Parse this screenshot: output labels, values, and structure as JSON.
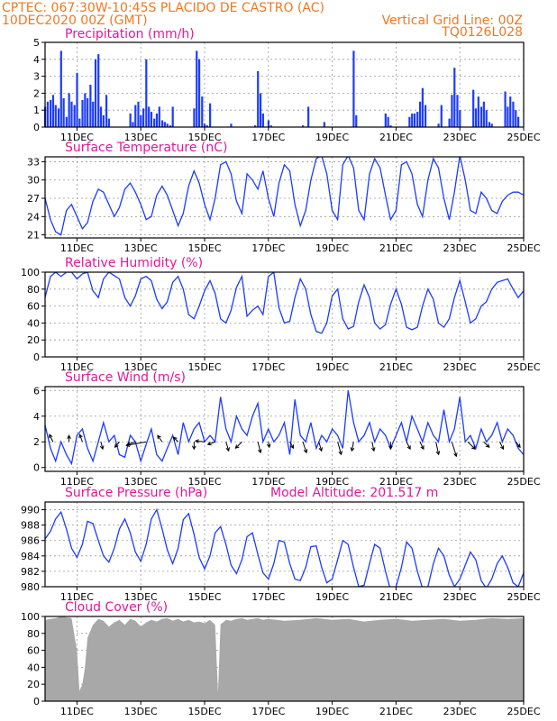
{
  "header": {
    "line1_left": "CPTEC:  067:30W-10:45S  PLACIDO DE CASTRO (AC)",
    "line2_left": "10DEC2020 00Z (GMT)",
    "line2_right": "Vertical Grid Line: 00Z",
    "line3_right": "TQ0126L028"
  },
  "colors": {
    "series": "#1c3cff",
    "cloud": "#a8a8a8",
    "title": "#e0189c",
    "header": "#f07820",
    "grid": "#9a9a9a"
  },
  "chart_data": [
    {
      "id": "precip",
      "type": "bar",
      "title": "Precipitation (mm/h)",
      "x": [
        10.0,
        10.08,
        10.17,
        10.25,
        10.33,
        10.42,
        10.5,
        10.58,
        10.67,
        10.75,
        10.83,
        10.92,
        11.0,
        11.08,
        11.17,
        11.25,
        11.33,
        11.42,
        11.5,
        11.58,
        11.67,
        11.75,
        11.83,
        11.92,
        12.0,
        12.67,
        12.75,
        12.83,
        12.92,
        13.0,
        13.08,
        13.17,
        13.25,
        13.33,
        13.42,
        13.5,
        13.58,
        13.67,
        13.75,
        13.83,
        13.92,
        14.0,
        14.67,
        14.75,
        14.83,
        14.92,
        15.0,
        15.08,
        15.17,
        15.83,
        16.58,
        16.67,
        16.75,
        16.83,
        17.0,
        17.08,
        18.08,
        18.25,
        18.75,
        19.67,
        19.75,
        20.67,
        20.75,
        20.83,
        21.42,
        21.5,
        21.58,
        21.67,
        21.75,
        21.83,
        21.92,
        22.33,
        22.42,
        22.67,
        22.75,
        22.83,
        22.92,
        23.0,
        23.42,
        23.5,
        23.58,
        23.67,
        23.75,
        23.83,
        23.92,
        24.0,
        24.42,
        24.5,
        24.58,
        24.67,
        24.75,
        24.83
      ],
      "values": [
        1.2,
        1.5,
        1.6,
        1.9,
        1.3,
        1.1,
        4.5,
        1.7,
        0.6,
        2.0,
        1.5,
        1.3,
        3.2,
        0.5,
        1.6,
        2.0,
        1.7,
        2.5,
        1.5,
        4.0,
        4.3,
        1.2,
        0.7,
        1.9,
        0.5,
        0.8,
        0.3,
        1.3,
        1.5,
        0.7,
        1.1,
        4.0,
        1.2,
        0.9,
        0.5,
        0.8,
        1.2,
        0.4,
        0.3,
        0.2,
        0.1,
        1.2,
        1.1,
        4.5,
        4.0,
        1.8,
        0.2,
        0.1,
        1.4,
        0.2,
        0.1,
        3.3,
        2.0,
        0.8,
        0.4,
        0.1,
        0.1,
        1.2,
        0.3,
        4.5,
        0.7,
        0.8,
        0.6,
        0.1,
        0.6,
        0.8,
        0.8,
        0.9,
        1.5,
        2.3,
        1.3,
        0.2,
        1.3,
        0.5,
        1.9,
        3.5,
        1.9,
        1.0,
        2.2,
        1.1,
        1.8,
        1.2,
        1.5,
        1.0,
        0.3,
        0.2,
        2.1,
        1.2,
        1.8,
        1.5,
        1.0,
        0.6
      ],
      "ylim": [
        0,
        5
      ],
      "yticks": [
        0,
        1,
        2,
        3,
        4,
        5
      ],
      "xlim": [
        10,
        25
      ],
      "grid": true
    },
    {
      "id": "temp",
      "type": "line",
      "title": "Surface Temperature (nC)",
      "x": [
        10.0,
        10.17,
        10.33,
        10.5,
        10.67,
        10.83,
        11.0,
        11.17,
        11.33,
        11.5,
        11.67,
        11.83,
        12.0,
        12.17,
        12.33,
        12.5,
        12.67,
        12.83,
        13.0,
        13.17,
        13.33,
        13.5,
        13.67,
        13.83,
        14.0,
        14.17,
        14.33,
        14.5,
        14.67,
        14.83,
        15.0,
        15.17,
        15.33,
        15.5,
        15.67,
        15.83,
        16.0,
        16.17,
        16.33,
        16.5,
        16.67,
        16.83,
        17.0,
        17.17,
        17.33,
        17.5,
        17.67,
        17.83,
        18.0,
        18.17,
        18.33,
        18.5,
        18.67,
        18.83,
        19.0,
        19.17,
        19.33,
        19.5,
        19.67,
        19.83,
        20.0,
        20.17,
        20.33,
        20.5,
        20.67,
        20.83,
        21.0,
        21.17,
        21.33,
        21.5,
        21.67,
        21.83,
        22.0,
        22.17,
        22.33,
        22.5,
        22.67,
        22.83,
        23.0,
        23.17,
        23.33,
        23.5,
        23.67,
        23.83,
        24.0,
        24.17,
        24.33,
        24.5,
        24.67,
        24.83,
        25.0
      ],
      "values": [
        27.0,
        23.5,
        21.5,
        21.0,
        25.0,
        26.0,
        24.0,
        22.0,
        23.0,
        26.5,
        28.5,
        28.0,
        26.0,
        24.0,
        25.5,
        28.5,
        29.5,
        28.0,
        26.0,
        23.5,
        24.0,
        27.5,
        29.0,
        27.5,
        25.0,
        22.5,
        24.5,
        29.0,
        31.5,
        29.5,
        26.0,
        23.5,
        27.0,
        32.5,
        33.0,
        31.0,
        26.5,
        24.5,
        31.0,
        30.0,
        28.5,
        31.5,
        27.0,
        24.0,
        29.5,
        32.5,
        31.5,
        26.0,
        22.5,
        25.0,
        30.0,
        33.5,
        34.0,
        31.0,
        25.0,
        23.5,
        32.5,
        34.0,
        32.0,
        25.0,
        23.5,
        31.0,
        33.5,
        32.0,
        27.5,
        23.5,
        25.0,
        32.5,
        33.0,
        31.0,
        26.0,
        24.0,
        30.0,
        33.5,
        32.0,
        27.0,
        23.5,
        28.0,
        34.0,
        30.0,
        25.0,
        24.5,
        28.0,
        27.0,
        25.0,
        24.5,
        26.5,
        27.5,
        28.0,
        28.0,
        27.5
      ],
      "ylim": [
        20.5,
        33.8
      ],
      "yticks": [
        21,
        24,
        27,
        30,
        33
      ],
      "xlim": [
        10,
        25
      ],
      "grid": true
    },
    {
      "id": "rh",
      "type": "line",
      "title": "Relative Humidity (%)",
      "x": [
        10.0,
        10.17,
        10.33,
        10.5,
        10.67,
        10.83,
        11.0,
        11.17,
        11.33,
        11.5,
        11.67,
        11.83,
        12.0,
        12.17,
        12.33,
        12.5,
        12.67,
        12.83,
        13.0,
        13.17,
        13.33,
        13.5,
        13.67,
        13.83,
        14.0,
        14.17,
        14.33,
        14.5,
        14.67,
        14.83,
        15.0,
        15.17,
        15.33,
        15.5,
        15.67,
        15.83,
        16.0,
        16.17,
        16.33,
        16.5,
        16.67,
        16.83,
        17.0,
        17.17,
        17.33,
        17.5,
        17.67,
        17.83,
        18.0,
        18.17,
        18.33,
        18.5,
        18.67,
        18.83,
        19.0,
        19.17,
        19.33,
        19.5,
        19.67,
        19.83,
        20.0,
        20.17,
        20.33,
        20.5,
        20.67,
        20.83,
        21.0,
        21.17,
        21.33,
        21.5,
        21.67,
        21.83,
        22.0,
        22.17,
        22.33,
        22.5,
        22.67,
        22.83,
        23.0,
        23.17,
        23.33,
        23.5,
        23.67,
        23.83,
        24.0,
        24.17,
        24.33,
        24.5,
        24.67,
        24.83,
        25.0
      ],
      "values": [
        70,
        95,
        100,
        95,
        100,
        100,
        92,
        98,
        100,
        78,
        70,
        92,
        100,
        96,
        92,
        70,
        60,
        72,
        92,
        95,
        90,
        68,
        57,
        65,
        88,
        95,
        80,
        50,
        45,
        60,
        78,
        90,
        75,
        45,
        40,
        55,
        82,
        95,
        48,
        55,
        60,
        50,
        95,
        100,
        58,
        40,
        42,
        70,
        92,
        80,
        50,
        30,
        28,
        40,
        72,
        80,
        45,
        33,
        36,
        65,
        85,
        70,
        40,
        33,
        38,
        62,
        80,
        62,
        35,
        32,
        35,
        60,
        80,
        68,
        40,
        35,
        45,
        70,
        90,
        65,
        40,
        45,
        60,
        65,
        80,
        88,
        90,
        92,
        80,
        70,
        78
      ],
      "ylim": [
        0,
        100
      ],
      "yticks": [
        0,
        20,
        40,
        60,
        80,
        100
      ],
      "xlim": [
        10,
        25
      ],
      "grid": true
    },
    {
      "id": "wind",
      "type": "line",
      "title": "Surface Wind (m/s)",
      "x": [
        10.0,
        10.17,
        10.33,
        10.5,
        10.67,
        10.83,
        11.0,
        11.17,
        11.33,
        11.5,
        11.67,
        11.83,
        12.0,
        12.17,
        12.33,
        12.5,
        12.67,
        12.83,
        13.0,
        13.17,
        13.33,
        13.5,
        13.67,
        13.83,
        14.0,
        14.17,
        14.33,
        14.5,
        14.67,
        14.83,
        15.0,
        15.17,
        15.33,
        15.5,
        15.67,
        15.83,
        16.0,
        16.17,
        16.33,
        16.5,
        16.67,
        16.83,
        17.0,
        17.17,
        17.33,
        17.5,
        17.67,
        17.83,
        18.0,
        18.17,
        18.33,
        18.5,
        18.67,
        18.83,
        19.0,
        19.17,
        19.33,
        19.5,
        19.67,
        19.83,
        20.0,
        20.17,
        20.33,
        20.5,
        20.67,
        20.83,
        21.0,
        21.17,
        21.33,
        21.5,
        21.67,
        21.83,
        22.0,
        22.17,
        22.33,
        22.5,
        22.67,
        22.83,
        23.0,
        23.17,
        23.33,
        23.5,
        23.67,
        23.83,
        24.0,
        24.17,
        24.33,
        24.5,
        24.67,
        24.83,
        25.0
      ],
      "values": [
        3.3,
        1.5,
        0.5,
        2.0,
        1.0,
        0.3,
        2.5,
        3.0,
        1.5,
        0.5,
        2.0,
        3.5,
        2.0,
        2.5,
        1.0,
        0.8,
        2.5,
        2.0,
        0.5,
        1.8,
        3.0,
        1.0,
        0.5,
        1.5,
        2.5,
        1.0,
        3.5,
        2.0,
        3.0,
        3.5,
        2.0,
        2.5,
        2.0,
        5.5,
        3.0,
        2.0,
        4.0,
        3.0,
        2.5,
        4.0,
        5.0,
        2.0,
        3.0,
        2.0,
        2.5,
        3.5,
        1.0,
        5.3,
        2.5,
        2.0,
        3.5,
        1.5,
        2.5,
        2.0,
        3.0,
        2.5,
        1.5,
        6.0,
        3.5,
        2.0,
        2.5,
        3.5,
        2.0,
        3.0,
        2.5,
        1.5,
        2.5,
        3.5,
        2.0,
        4.0,
        3.0,
        2.0,
        3.5,
        2.5,
        2.0,
        4.5,
        2.0,
        3.0,
        5.5,
        2.0,
        2.5,
        1.5,
        3.0,
        2.0,
        2.5,
        3.5,
        2.0,
        3.0,
        2.5,
        1.5,
        1.0
      ],
      "arrows": [
        {
          "x": 10.25,
          "dx": -4,
          "dy": -8
        },
        {
          "x": 10.75,
          "dx": 0,
          "dy": -7
        },
        {
          "x": 11.17,
          "dx": -3,
          "dy": -8
        },
        {
          "x": 11.75,
          "dx": 2,
          "dy": 8
        },
        {
          "x": 12.33,
          "dx": -5,
          "dy": 6
        },
        {
          "x": 12.83,
          "dx": -9,
          "dy": 3
        },
        {
          "x": 13.17,
          "dx": -22,
          "dy": 4
        },
        {
          "x": 13.67,
          "dx": -5,
          "dy": -7
        },
        {
          "x": 14.17,
          "dx": -5,
          "dy": -5
        },
        {
          "x": 14.67,
          "dx": 0,
          "dy": 8
        },
        {
          "x": 15.0,
          "dx": -10,
          "dy": -1
        },
        {
          "x": 15.33,
          "dx": -8,
          "dy": 3
        },
        {
          "x": 15.67,
          "dx": 3,
          "dy": 10
        },
        {
          "x": 16.17,
          "dx": -7,
          "dy": 7
        },
        {
          "x": 16.67,
          "dx": 3,
          "dy": 12
        },
        {
          "x": 17.0,
          "dx": 1,
          "dy": 6
        },
        {
          "x": 17.67,
          "dx": 4,
          "dy": 7
        },
        {
          "x": 18.08,
          "dx": 4,
          "dy": 12
        },
        {
          "x": 18.58,
          "dx": 3,
          "dy": 10
        },
        {
          "x": 19.17,
          "dx": 4,
          "dy": 14
        },
        {
          "x": 19.67,
          "dx": -2,
          "dy": 10
        },
        {
          "x": 20.25,
          "dx": 2,
          "dy": 10
        },
        {
          "x": 20.83,
          "dx": 0,
          "dy": 8
        },
        {
          "x": 21.33,
          "dx": 4,
          "dy": 8
        },
        {
          "x": 21.75,
          "dx": 4,
          "dy": 8
        },
        {
          "x": 22.25,
          "dx": 3,
          "dy": 14
        },
        {
          "x": 22.75,
          "dx": 5,
          "dy": 16
        },
        {
          "x": 23.25,
          "dx": 8,
          "dy": 8
        },
        {
          "x": 23.75,
          "dx": 6,
          "dy": 6
        },
        {
          "x": 24.25,
          "dx": 4,
          "dy": 8
        },
        {
          "x": 24.75,
          "dx": 5,
          "dy": 6
        }
      ],
      "ylim": [
        -0.3,
        6.3
      ],
      "yticks": [
        0,
        2,
        4,
        6
      ],
      "xlim": [
        10,
        25
      ],
      "grid": true
    },
    {
      "id": "pressure",
      "type": "line",
      "title": "Surface Pressure (hPa)",
      "annotation": "Model Altitude: 201.517 m",
      "x": [
        10.0,
        10.17,
        10.33,
        10.5,
        10.67,
        10.83,
        11.0,
        11.17,
        11.33,
        11.5,
        11.67,
        11.83,
        12.0,
        12.17,
        12.33,
        12.5,
        12.67,
        12.83,
        13.0,
        13.17,
        13.33,
        13.5,
        13.67,
        13.83,
        14.0,
        14.17,
        14.33,
        14.5,
        14.67,
        14.83,
        15.0,
        15.17,
        15.33,
        15.5,
        15.67,
        15.83,
        16.0,
        16.17,
        16.33,
        16.5,
        16.67,
        16.83,
        17.0,
        17.17,
        17.33,
        17.5,
        17.67,
        17.83,
        18.0,
        18.17,
        18.33,
        18.5,
        18.67,
        18.83,
        19.0,
        19.17,
        19.33,
        19.5,
        19.67,
        19.83,
        20.0,
        20.17,
        20.33,
        20.5,
        20.67,
        20.83,
        21.0,
        21.17,
        21.33,
        21.5,
        21.67,
        21.83,
        22.0,
        22.17,
        22.33,
        22.5,
        22.67,
        22.83,
        23.0,
        23.17,
        23.33,
        23.5,
        23.67,
        23.83,
        24.0,
        24.17,
        24.33,
        24.5,
        24.67,
        24.83,
        25.0
      ],
      "values": [
        986.2,
        987.2,
        988.8,
        989.7,
        987.5,
        985.0,
        983.8,
        985.5,
        988.5,
        988.2,
        986.0,
        984.0,
        983.2,
        985.0,
        987.5,
        988.8,
        987.0,
        984.5,
        983.3,
        985.5,
        988.8,
        990.0,
        987.5,
        984.8,
        983.0,
        985.0,
        988.7,
        989.5,
        986.8,
        983.8,
        982.3,
        984.0,
        987.0,
        987.8,
        985.5,
        982.8,
        981.7,
        983.5,
        986.5,
        987.0,
        984.2,
        981.8,
        981.0,
        983.0,
        986.0,
        985.8,
        983.0,
        981.0,
        980.8,
        982.5,
        985.2,
        985.3,
        982.5,
        980.5,
        981.0,
        983.5,
        986.0,
        985.5,
        982.5,
        980.0,
        980.2,
        983.0,
        985.5,
        985.0,
        982.0,
        979.5,
        980.0,
        982.5,
        985.8,
        985.0,
        982.0,
        979.8,
        980.0,
        983.0,
        985.0,
        984.0,
        981.5,
        980.0,
        981.0,
        982.8,
        984.5,
        983.5,
        980.8,
        979.8,
        981.0,
        983.0,
        984.0,
        982.5,
        980.5,
        980.0,
        981.8
      ],
      "ylim": [
        980,
        991
      ],
      "yticks": [
        980,
        982,
        984,
        986,
        988,
        990
      ],
      "xlim": [
        10,
        25
      ],
      "grid": true
    },
    {
      "id": "cloud",
      "type": "area",
      "title": "Cloud Cover (%)",
      "x": [
        10.0,
        10.17,
        10.33,
        10.5,
        10.67,
        10.83,
        11.0,
        11.08,
        11.17,
        11.25,
        11.33,
        11.5,
        11.67,
        11.83,
        12.0,
        12.17,
        12.33,
        12.5,
        12.67,
        12.83,
        13.0,
        13.17,
        13.33,
        13.5,
        13.67,
        13.83,
        14.0,
        14.17,
        14.33,
        14.5,
        14.67,
        14.83,
        15.0,
        15.17,
        15.33,
        15.42,
        15.5,
        15.58,
        15.67,
        15.83,
        16.0,
        16.17,
        16.33,
        16.5,
        16.67,
        16.83,
        17.0,
        17.5,
        18.0,
        18.5,
        19.0,
        19.5,
        20.0,
        20.5,
        21.0,
        21.5,
        22.0,
        22.5,
        23.0,
        23.5,
        24.0,
        24.5,
        25.0
      ],
      "values": [
        96,
        97,
        98,
        100,
        99,
        98,
        60,
        12,
        20,
        40,
        75,
        90,
        97,
        95,
        88,
        93,
        96,
        90,
        97,
        95,
        88,
        93,
        96,
        94,
        97,
        98,
        95,
        97,
        94,
        96,
        93,
        94,
        92,
        96,
        90,
        10,
        91,
        93,
        96,
        95,
        97,
        98,
        96,
        97,
        98,
        96,
        97,
        95,
        96,
        98,
        96,
        97,
        94,
        96,
        97,
        95,
        96,
        97,
        95,
        96,
        98,
        97,
        98
      ],
      "ylim": [
        0,
        100
      ],
      "yticks": [
        0,
        20,
        40,
        60,
        80,
        100
      ],
      "xlim": [
        10,
        25
      ],
      "grid": true
    }
  ],
  "xaxis": {
    "ticks": [
      11,
      13,
      15,
      17,
      19,
      21,
      23,
      25
    ],
    "tick_labels": [
      "11DEC",
      "13DEC",
      "15DEC",
      "17DEC",
      "19DEC",
      "21DEC",
      "23DEC",
      "25DEC"
    ]
  }
}
